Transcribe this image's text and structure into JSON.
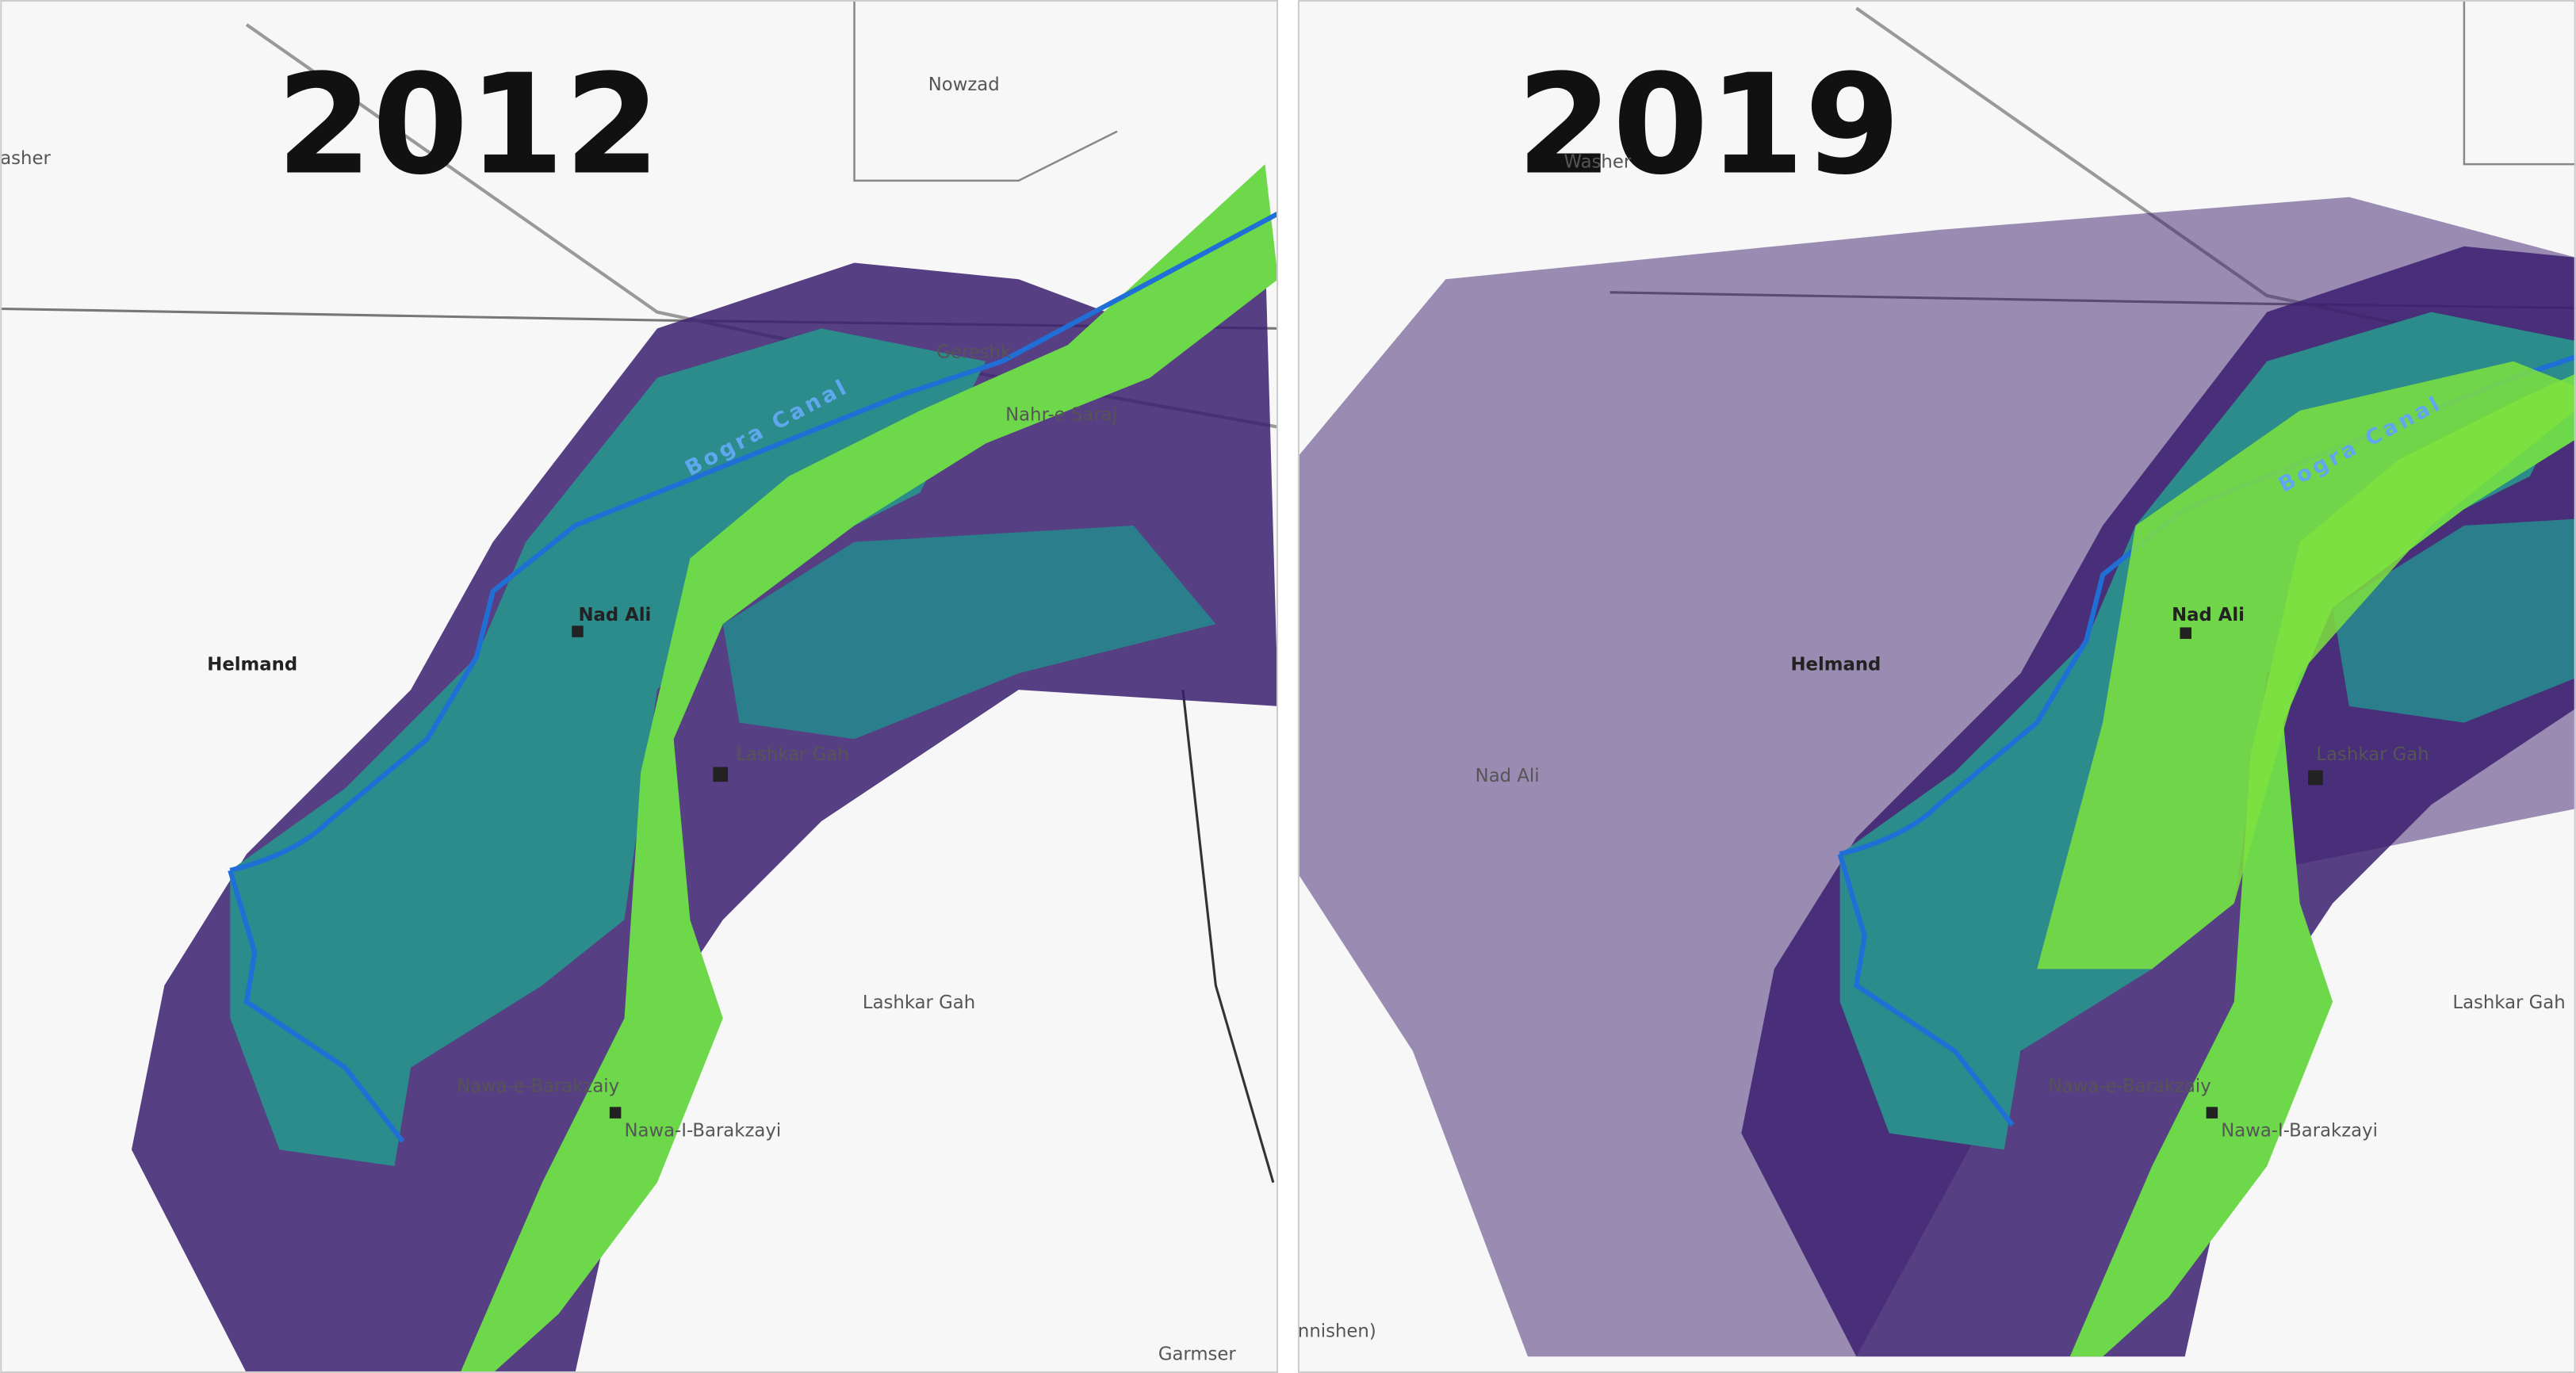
{
  "panels": [
    {
      "year": "2012",
      "labels": [
        "asher",
        "Nowzad",
        "Bogra Canal",
        "Gereshk",
        "Nahr-e Saraj",
        "Nad Ali",
        "Helmand",
        "Lashkar Gah",
        "Lashkar Gah",
        "Nawa-e-Barakzaiy",
        "Nawa-I-Barakzayi",
        "Garmser"
      ]
    },
    {
      "year": "2019",
      "labels": [
        "Washer",
        "Bogra Canal",
        "Nad Ali",
        "Helmand",
        "Nad Ali",
        "Lashkar Gah",
        "Lashkar Gah",
        "Nawa-e-Barakzaiy",
        "Nawa-I-Barakzayi",
        "nnishen)"
      ]
    }
  ]
}
